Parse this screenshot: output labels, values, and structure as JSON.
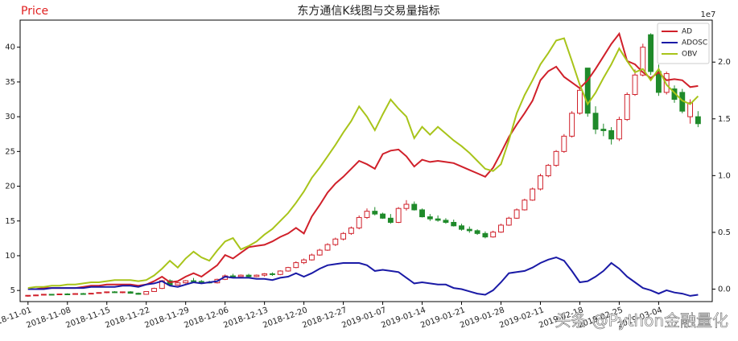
{
  "chart_data": {
    "type": "candlestick",
    "title": "东方通信K线图与交易量指标",
    "y_label": "Price",
    "y2_offset_label": "1e7",
    "watermark": "头条 @Python金融量化",
    "categories": [
      "2018-11-01",
      null,
      null,
      null,
      null,
      "2018-11-08",
      null,
      null,
      null,
      null,
      "2018-11-15",
      null,
      null,
      null,
      null,
      "2018-11-22",
      null,
      null,
      null,
      null,
      "2018-11-29",
      null,
      null,
      null,
      null,
      "2018-12-06",
      null,
      null,
      null,
      null,
      "2018-12-13",
      null,
      null,
      null,
      null,
      "2018-12-20",
      null,
      null,
      null,
      null,
      "2018-12-27",
      null,
      null,
      null,
      null,
      "2019-01-07",
      null,
      null,
      null,
      null,
      "2019-01-14",
      null,
      null,
      null,
      null,
      "2019-01-21",
      null,
      null,
      null,
      null,
      "2019-01-28",
      null,
      null,
      null,
      null,
      "2019-02-11",
      null,
      null,
      null,
      null,
      "2019-02-18",
      null,
      null,
      null,
      null,
      "2019-02-25",
      null,
      null,
      null,
      null,
      "2019-03-04",
      null,
      null,
      null,
      null,
      null
    ],
    "open": [
      4.2,
      4.3,
      4.35,
      4.45,
      4.4,
      4.5,
      4.45,
      4.55,
      4.5,
      4.6,
      4.7,
      4.8,
      4.7,
      4.8,
      4.6,
      4.45,
      4.85,
      5.3,
      6.4,
      5.8,
      6.1,
      6.4,
      6.3,
      6.2,
      6.1,
      6.6,
      7.1,
      7.0,
      7.2,
      7.0,
      7.2,
      7.4,
      7.3,
      7.8,
      8.3,
      9.0,
      9.4,
      10.1,
      10.8,
      11.6,
      12.4,
      13.2,
      14.0,
      15.5,
      16.4,
      16.0,
      15.4,
      14.8,
      16.8,
      17.4,
      16.6,
      15.6,
      15.3,
      15.1,
      14.8,
      14.3,
      13.8,
      13.6,
      13.2,
      12.7,
      13.4,
      14.4,
      15.4,
      16.6,
      18.0,
      19.6,
      21.5,
      23.0,
      25.0,
      27.2,
      30.5,
      37.0,
      30.5,
      28.2,
      28.0,
      26.8,
      29.6,
      33.2,
      36.0,
      41.8,
      36.5,
      33.5,
      34.0,
      33.5,
      30.0,
      30.0
    ],
    "high": [
      4.3,
      4.4,
      4.5,
      4.5,
      4.55,
      4.6,
      4.6,
      4.65,
      4.65,
      4.75,
      4.85,
      4.9,
      4.85,
      4.9,
      4.7,
      4.9,
      5.4,
      6.5,
      6.6,
      6.2,
      6.5,
      6.8,
      6.5,
      6.4,
      6.7,
      7.3,
      7.4,
      7.3,
      7.4,
      7.3,
      7.5,
      7.6,
      7.9,
      8.4,
      9.2,
      9.6,
      10.3,
      11.0,
      11.8,
      12.6,
      13.4,
      14.2,
      15.8,
      16.8,
      17.0,
      16.2,
      16.0,
      17.0,
      18.0,
      17.8,
      16.8,
      16.0,
      15.8,
      15.4,
      15.2,
      14.6,
      14.2,
      13.8,
      13.5,
      13.6,
      14.6,
      15.6,
      16.8,
      18.2,
      19.8,
      21.8,
      23.2,
      25.2,
      27.5,
      30.8,
      34.0,
      37.0,
      31.5,
      29.0,
      28.5,
      30.0,
      33.5,
      36.8,
      40.5,
      42.0,
      37.5,
      36.5,
      34.5,
      34.0,
      32.5,
      30.8
    ],
    "low": [
      4.1,
      4.2,
      4.3,
      4.35,
      4.35,
      4.4,
      4.4,
      4.45,
      4.45,
      4.55,
      4.6,
      4.65,
      4.6,
      4.55,
      4.4,
      4.4,
      4.8,
      5.2,
      5.7,
      5.7,
      6.0,
      6.2,
      6.0,
      6.0,
      6.0,
      6.5,
      6.9,
      6.8,
      6.9,
      6.9,
      7.0,
      7.1,
      7.2,
      7.7,
      8.2,
      8.8,
      9.3,
      10.0,
      10.7,
      11.4,
      12.2,
      13.0,
      13.8,
      15.3,
      15.8,
      15.3,
      14.6,
      14.7,
      16.5,
      16.5,
      15.5,
      15.0,
      14.9,
      14.6,
      14.2,
      13.6,
      13.3,
      13.0,
      12.5,
      12.6,
      13.3,
      14.3,
      15.3,
      16.5,
      17.9,
      19.4,
      21.3,
      22.8,
      24.8,
      27.0,
      30.3,
      30.0,
      27.5,
      27.2,
      26.0,
      26.5,
      29.4,
      33.0,
      35.8,
      36.0,
      33.0,
      33.2,
      32.0,
      30.5,
      29.0,
      28.5
    ],
    "close": [
      4.3,
      4.35,
      4.45,
      4.4,
      4.5,
      4.45,
      4.55,
      4.5,
      4.6,
      4.7,
      4.8,
      4.7,
      4.8,
      4.6,
      4.45,
      4.85,
      5.3,
      6.4,
      5.8,
      6.1,
      6.4,
      6.3,
      6.2,
      6.1,
      6.6,
      7.1,
      7.0,
      7.2,
      7.0,
      7.2,
      7.4,
      7.3,
      7.8,
      8.3,
      9.0,
      9.4,
      10.1,
      10.8,
      11.6,
      12.4,
      13.2,
      14.0,
      15.5,
      16.4,
      16.0,
      15.4,
      14.8,
      16.8,
      17.4,
      16.6,
      15.6,
      15.3,
      15.1,
      14.8,
      14.3,
      13.8,
      13.6,
      13.2,
      12.7,
      13.4,
      14.4,
      15.4,
      16.6,
      18.0,
      19.6,
      21.5,
      23.0,
      25.0,
      27.2,
      30.5,
      33.8,
      30.5,
      28.2,
      28.0,
      26.8,
      29.6,
      33.2,
      36.0,
      40.0,
      36.5,
      33.5,
      36.2,
      32.5,
      30.8,
      32.0,
      29.0
    ],
    "up_color": "#d0202a",
    "down_color": "#1f8a2a",
    "series": [
      {
        "name": "AD",
        "color": "#d0202a",
        "axis": "y2",
        "values": [
          0.0,
          0.0,
          0.01,
          0.01,
          0.01,
          0.01,
          0.01,
          0.02,
          0.03,
          0.03,
          0.04,
          0.04,
          0.04,
          0.04,
          0.03,
          0.04,
          0.07,
          0.11,
          0.06,
          0.07,
          0.11,
          0.14,
          0.11,
          0.16,
          0.21,
          0.3,
          0.27,
          0.32,
          0.37,
          0.38,
          0.39,
          0.42,
          0.46,
          0.49,
          0.54,
          0.49,
          0.64,
          0.74,
          0.85,
          0.93,
          0.99,
          1.06,
          1.13,
          1.1,
          1.06,
          1.19,
          1.22,
          1.23,
          1.17,
          1.08,
          1.14,
          1.12,
          1.13,
          1.12,
          1.11,
          1.08,
          1.05,
          1.02,
          0.99,
          1.07,
          1.2,
          1.34,
          1.45,
          1.55,
          1.66,
          1.84,
          1.92,
          1.96,
          1.87,
          1.82,
          1.77,
          1.84,
          1.94,
          2.05,
          2.16,
          2.25,
          2.01,
          1.98,
          1.91,
          1.86,
          1.91,
          1.84,
          1.85,
          1.84,
          1.78,
          1.79
        ]
      },
      {
        "name": "ADOSC",
        "color": "#1a1aa6",
        "axis": "y2",
        "values": [
          0.0,
          0.0,
          0.0,
          0.01,
          0.01,
          0.01,
          0.01,
          0.01,
          0.02,
          0.02,
          0.02,
          0.02,
          0.03,
          0.03,
          0.02,
          0.04,
          0.05,
          0.07,
          0.03,
          0.02,
          0.04,
          0.06,
          0.05,
          0.06,
          0.07,
          0.11,
          0.1,
          0.1,
          0.1,
          0.09,
          0.09,
          0.08,
          0.1,
          0.11,
          0.14,
          0.11,
          0.14,
          0.18,
          0.21,
          0.22,
          0.23,
          0.23,
          0.23,
          0.21,
          0.16,
          0.17,
          0.16,
          0.15,
          0.1,
          0.05,
          0.06,
          0.05,
          0.04,
          0.04,
          0.01,
          0.0,
          -0.02,
          -0.04,
          -0.05,
          -0.01,
          0.06,
          0.14,
          0.15,
          0.16,
          0.19,
          0.23,
          0.26,
          0.28,
          0.25,
          0.16,
          0.06,
          0.07,
          0.11,
          0.16,
          0.23,
          0.18,
          0.11,
          0.06,
          0.01,
          -0.01,
          -0.04,
          -0.01,
          -0.03,
          -0.04,
          -0.06,
          -0.05
        ]
      },
      {
        "name": "OBV",
        "color": "#a8c41a",
        "axis": "y2",
        "values": [
          0.01,
          0.02,
          0.02,
          0.03,
          0.03,
          0.04,
          0.04,
          0.05,
          0.06,
          0.06,
          0.07,
          0.08,
          0.08,
          0.08,
          0.07,
          0.08,
          0.12,
          0.18,
          0.25,
          0.19,
          0.27,
          0.33,
          0.28,
          0.25,
          0.34,
          0.42,
          0.45,
          0.35,
          0.38,
          0.42,
          0.48,
          0.53,
          0.6,
          0.67,
          0.76,
          0.86,
          0.98,
          1.07,
          1.17,
          1.27,
          1.38,
          1.48,
          1.61,
          1.52,
          1.4,
          1.54,
          1.67,
          1.59,
          1.52,
          1.33,
          1.43,
          1.36,
          1.43,
          1.37,
          1.31,
          1.26,
          1.2,
          1.13,
          1.06,
          1.04,
          1.1,
          1.31,
          1.55,
          1.71,
          1.84,
          1.98,
          2.08,
          2.19,
          2.21,
          2.01,
          1.8,
          1.63,
          1.73,
          1.86,
          1.98,
          2.12,
          2.01,
          1.91,
          1.94,
          1.84,
          1.94,
          1.8,
          1.73,
          1.66,
          1.63,
          1.7
        ]
      }
    ],
    "ylim": [
      3.4,
      43.9
    ],
    "yticks": [
      5,
      10,
      15,
      20,
      25,
      30,
      35,
      40
    ],
    "y2lim": [
      -0.11,
      2.37
    ],
    "y2ticks": [
      {
        "value": 0,
        "label": "0.0"
      },
      0.5,
      {
        "value": 1,
        "label": "1.0"
      },
      1.5,
      {
        "value": 2,
        "label": "2.0"
      }
    ],
    "legend": "upper right",
    "grid": false
  }
}
